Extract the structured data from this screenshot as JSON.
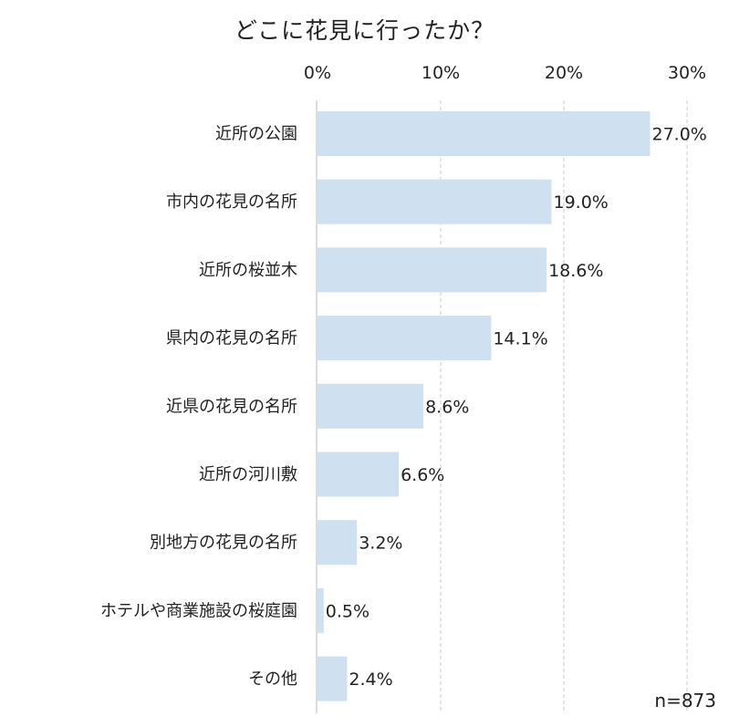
{
  "chart_data": {
    "type": "bar",
    "orientation": "horizontal",
    "title": "どこに花見に行ったか？",
    "categories": [
      "近所の公園",
      "市内の花見の名所",
      "近所の桜並木",
      "県内の花見の名所",
      "近県の花見の名所",
      "近所の河川敷",
      "別地方の花見の名所",
      "ホテルや商業施設の桜庭園",
      "その他"
    ],
    "values": [
      27.0,
      19.0,
      18.6,
      14.1,
      8.6,
      6.6,
      3.2,
      0.5,
      2.4
    ],
    "value_labels": [
      "27.0%",
      "19.0%",
      "18.6%",
      "14.1%",
      "8.6%",
      "6.6%",
      "3.2%",
      "0.5%",
      "2.4%"
    ],
    "xlim": [
      0,
      30
    ],
    "xticks": [
      0,
      10,
      20,
      30
    ],
    "xtick_labels": [
      "0%",
      "10%",
      "20%",
      "30%"
    ],
    "xaxis_position": "top",
    "grid": "vertical dashed",
    "note": "n=873",
    "bar_color": "#cfe0f0",
    "grid_color": "#c8c8c8"
  }
}
